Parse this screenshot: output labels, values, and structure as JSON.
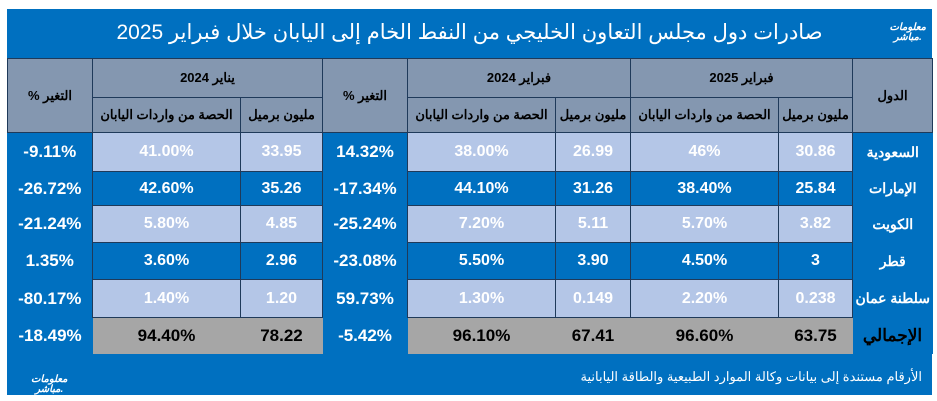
{
  "title": "صادرات دول مجلس التعاون الخليجي من النفط الخام إلى اليابان خلال فبراير 2025",
  "logo_text": "معلومات مباشر.",
  "headers": {
    "country": "الدول",
    "feb2025": "فبراير 2025",
    "feb2024": "فبراير 2024",
    "jan2024": "يناير 2024",
    "million_barrels": "مليون برميل",
    "share": "الحصة من واردات اليابان",
    "change": "التغير %"
  },
  "rows": [
    {
      "country": "السعودية",
      "feb25_mb": "30.86",
      "feb25_share": "46%",
      "feb24_mb": "26.99",
      "feb24_share": "38.00%",
      "chg_yoy": "14.32%",
      "jan24_mb": "33.95",
      "jan24_share": "41.00%",
      "chg_mom": "-9.11%"
    },
    {
      "country": "الإمارات",
      "feb25_mb": "25.84",
      "feb25_share": "38.40%",
      "feb24_mb": "31.26",
      "feb24_share": "44.10%",
      "chg_yoy": "-17.34%",
      "jan24_mb": "35.26",
      "jan24_share": "42.60%",
      "chg_mom": "-26.72%"
    },
    {
      "country": "الكويت",
      "feb25_mb": "3.82",
      "feb25_share": "5.70%",
      "feb24_mb": "5.11",
      "feb24_share": "7.20%",
      "chg_yoy": "-25.24%",
      "jan24_mb": "4.85",
      "jan24_share": "5.80%",
      "chg_mom": "-21.24%"
    },
    {
      "country": "قطر",
      "feb25_mb": "3",
      "feb25_share": "4.50%",
      "feb24_mb": "3.90",
      "feb24_share": "5.50%",
      "chg_yoy": "-23.08%",
      "jan24_mb": "2.96",
      "jan24_share": "3.60%",
      "chg_mom": "1.35%"
    },
    {
      "country": "سلطنة عمان",
      "feb25_mb": "0.238",
      "feb25_share": "2.20%",
      "feb24_mb": "0.149",
      "feb24_share": "1.30%",
      "chg_yoy": "59.73%",
      "jan24_mb": "1.20",
      "jan24_share": "1.40%",
      "chg_mom": "-80.17%"
    }
  ],
  "total": {
    "country": "الإجمالي",
    "feb25_mb": "63.75",
    "feb25_share": "96.60%",
    "feb24_mb": "67.41",
    "feb24_share": "96.10%",
    "chg_yoy": "-5.42%",
    "jan24_mb": "78.22",
    "jan24_share": "94.40%",
    "chg_mom": "-18.49%"
  },
  "footer": "الأرقام مستندة إلى بيانات وكالة الموارد الطبيعية والطاقة اليابانية"
}
